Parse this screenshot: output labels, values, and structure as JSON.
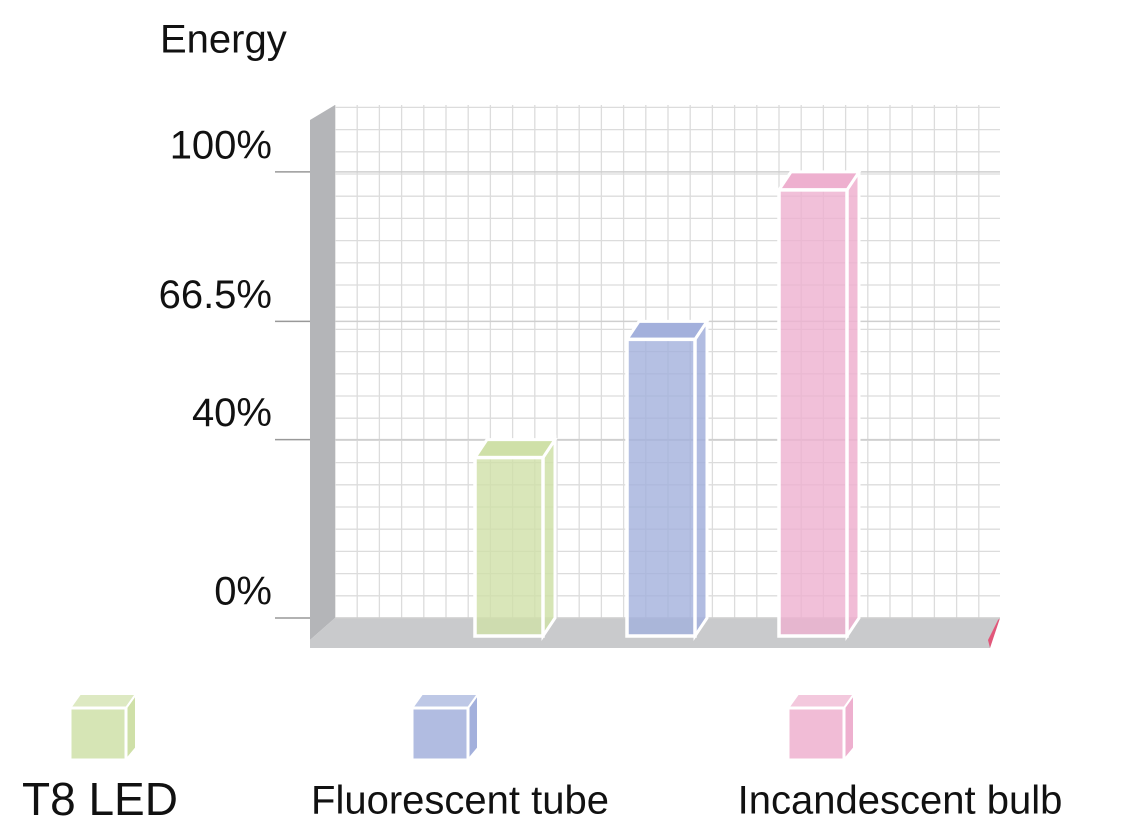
{
  "chart_data": {
    "type": "bar",
    "title": "Energy",
    "categories": [
      "T8 LED",
      "Fluorescent tube",
      "Incandescent bulb"
    ],
    "values": [
      40,
      66.5,
      100
    ],
    "colors": [
      "#cfe0a8",
      "#a3b0dc",
      "#eeb0cf"
    ],
    "ylim": [
      0,
      115
    ],
    "yticks": [
      {
        "value": 0,
        "label": "0%"
      },
      {
        "value": 40,
        "label": "40%"
      },
      {
        "value": 66.5,
        "label": "66.5%"
      },
      {
        "value": 100,
        "label": "100%"
      }
    ]
  }
}
